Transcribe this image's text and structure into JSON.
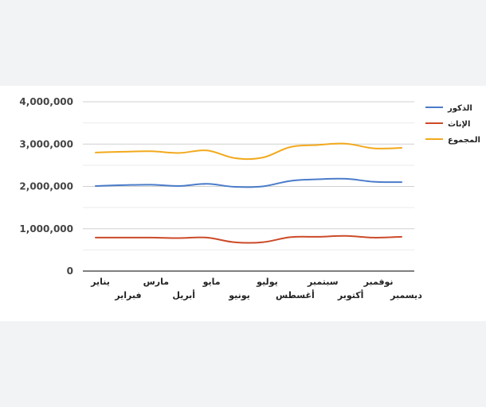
{
  "chart_data": {
    "type": "line",
    "title": "",
    "xlabel": "",
    "ylabel": "",
    "categories": [
      "يناير",
      "فبراير",
      "مارس",
      "أبريل",
      "مايو",
      "يونيو",
      "يوليو",
      "أغسطس",
      "سبتمبر",
      "أكتوبر",
      "نوفمبر",
      "ديسمبر"
    ],
    "ylim": [
      0,
      4000000
    ],
    "yticks": [
      "0",
      "1,000,000",
      "2,000,000",
      "3,000,000",
      "4,000,000"
    ],
    "grid": true,
    "legend_position": "right",
    "series": [
      {
        "name": "الذكور",
        "color": "#4a7cc9",
        "values": [
          2010000,
          2030000,
          2040000,
          2010000,
          2060000,
          1990000,
          2000000,
          2130000,
          2170000,
          2180000,
          2110000,
          2100000
        ]
      },
      {
        "name": "الإناث",
        "color": "#cc4a28",
        "values": [
          790000,
          790000,
          790000,
          780000,
          790000,
          680000,
          680000,
          800000,
          810000,
          830000,
          790000,
          810000
        ]
      },
      {
        "name": "المجموع",
        "color": "#f2a91c",
        "values": [
          2800000,
          2820000,
          2830000,
          2790000,
          2850000,
          2670000,
          2680000,
          2930000,
          2980000,
          3010000,
          2900000,
          2910000
        ]
      }
    ]
  }
}
